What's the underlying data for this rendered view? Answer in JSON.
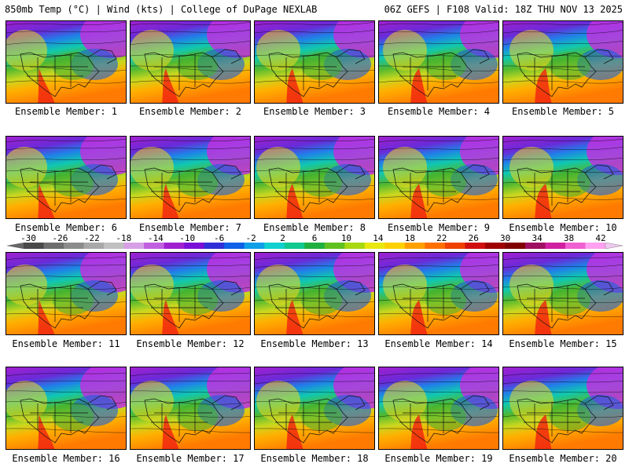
{
  "header": {
    "left": "850mb Temp (°C) | Wind (kts) | College of DuPage NEXLAB",
    "right": "06Z GEFS | F108 Valid: 18Z THU NOV 13 2025"
  },
  "members": [
    "Ensemble Member: 1",
    "Ensemble Member: 2",
    "Ensemble Member: 3",
    "Ensemble Member: 4",
    "Ensemble Member: 5",
    "Ensemble Member: 6",
    "Ensemble Member: 7",
    "Ensemble Member: 8",
    "Ensemble Member: 9",
    "Ensemble Member: 10",
    "Ensemble Member: 11",
    "Ensemble Member: 12",
    "Ensemble Member: 13",
    "Ensemble Member: 14",
    "Ensemble Member: 15",
    "Ensemble Member: 16",
    "Ensemble Member: 17",
    "Ensemble Member: 18",
    "Ensemble Member: 19",
    "Ensemble Member: 20"
  ],
  "colorbar": {
    "labels": [
      "-30",
      "-26",
      "-22",
      "-18",
      "-14",
      "-10",
      "-6",
      "-2",
      "2",
      "6",
      "10",
      "14",
      "18",
      "22",
      "26",
      "30",
      "34",
      "38",
      "42"
    ],
    "colors": [
      "#4a4a4a",
      "#6e6e6e",
      "#8c8c8c",
      "#a8a8a8",
      "#c0c0c0",
      "#d7a0e6",
      "#c060e0",
      "#a020d0",
      "#7a10d8",
      "#3030d8",
      "#1060e8",
      "#10a0e8",
      "#10d0d0",
      "#10c890",
      "#20b040",
      "#60c020",
      "#a8d810",
      "#e8e810",
      "#ffd000",
      "#ffa000",
      "#ff7000",
      "#f04000",
      "#d01010",
      "#a00000",
      "#800000",
      "#a01060",
      "#d020a0",
      "#f060d0",
      "#ffa0f0"
    ]
  }
}
